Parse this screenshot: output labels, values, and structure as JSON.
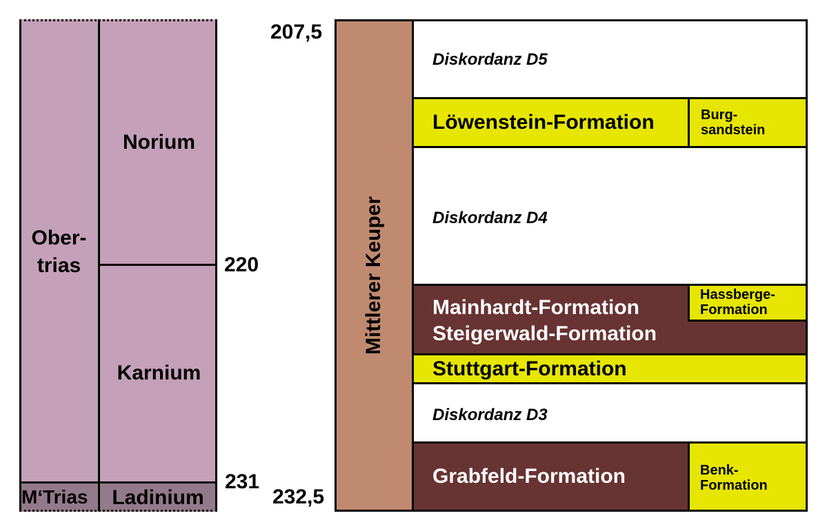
{
  "ages": {
    "top": "207,5",
    "a220": "220",
    "a231": "231",
    "bottom": "232,5"
  },
  "left": {
    "series_upper": "Ober-\ntrias",
    "series_middle": "M‘Trias",
    "norium": "Norium",
    "karnium": "Karnium",
    "ladinium": "Ladinium"
  },
  "right": {
    "group": "Mittlerer Keuper",
    "d5": "Diskordanz D5",
    "loewenstein": "Löwenstein-Formation",
    "burg": "Burg-\nsandstein",
    "d4": "Diskordanz D4",
    "mainhardt": "Mainhardt-Formation",
    "steigerwald": "Steigerwald-Formation",
    "hassberge": "Hassberge-\nFormation",
    "stuttgart": "Stuttgart-Formation",
    "d3": "Diskordanz D3",
    "grabfeld": "Grabfeld-Formation",
    "benk": "Benk-\nFormation"
  },
  "colors": {
    "upper_triassic": "#c4a0b9",
    "middle_triassic": "#937a8b",
    "keuper": "#c08a70",
    "sandstone": "#e6e600",
    "mudstone": "#683333"
  }
}
